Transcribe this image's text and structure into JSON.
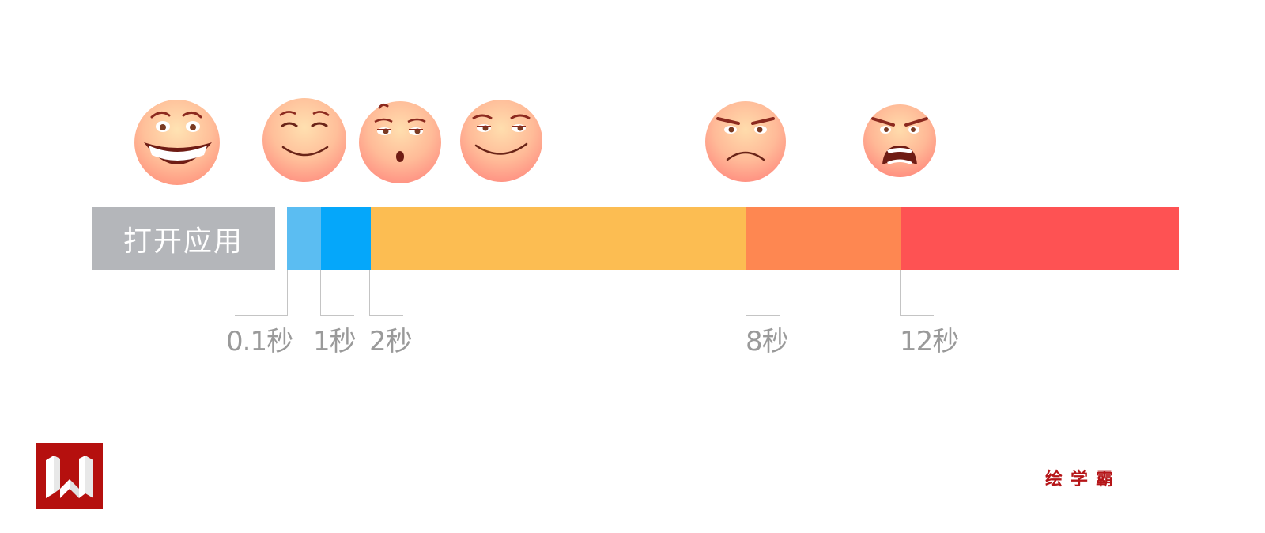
{
  "start_label": "打开应用",
  "segments": [
    {
      "color": "#5bbdf2"
    },
    {
      "color": "#05a7fa"
    },
    {
      "color": "#fcbd52"
    },
    {
      "color": "#fe8751"
    },
    {
      "color": "#fe5253"
    }
  ],
  "markers": [
    {
      "label": "0.1秒"
    },
    {
      "label": "1秒"
    },
    {
      "label": "2秒"
    },
    {
      "label": "8秒"
    },
    {
      "label": "12秒"
    }
  ],
  "faces": [
    "laughing-face-icon",
    "content-face-icon",
    "bored-face-icon",
    "smirk-face-icon",
    "frowning-face-icon",
    "angry-face-icon"
  ],
  "brand": "绘学霸",
  "logo_icon": "w-logo-icon"
}
